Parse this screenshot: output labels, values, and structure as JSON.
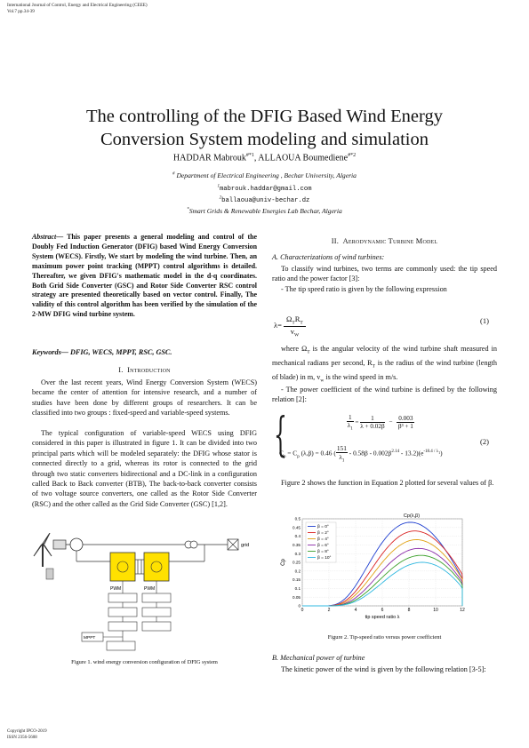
{
  "header": {
    "journal": "International Journal of Control, Energy and Electrical Engineering (CEEE)",
    "volume": "Vol.7 pp.34-39"
  },
  "title": {
    "line1": "The controlling of the DFIG Based Wind Energy",
    "line2": "Conversion System modeling and simulation"
  },
  "authors": {
    "a1": "HADDAR Mabrouk",
    "a1_sup": "#*1",
    "sep": ", ",
    "a2": "ALLAOUA Boumediene",
    "a2_sup": "#*2"
  },
  "affiliations": {
    "dept_mark": "#",
    "dept": "Department of Electrical Engineering , Bechar University, Algeria",
    "email1_mark": "1",
    "email1": "mabrouk.haddar@gmail.com",
    "email2_mark": "2",
    "email2": "ballaoua@univ-bechar.dz",
    "lab_mark": "*",
    "lab": "Smart Grids & Renewable Energies Lab Bechar, Algeria"
  },
  "abstract": {
    "label": "Abstract",
    "text": "— This paper presents a general modeling and control of the Doubly Fed Induction Generator (DFIG) based Wind Energy Conversion System (WECS). Firstly, We start by modeling the wind turbine. Then, an maximum power point tracking (MPPT) control algorithms is detailed. Thereafter, we given DFIG's mathematic model in the d-q coordinates. Both Grid Side Converter (GSC) and Rotor Side Converter RSC control strategy are presented theoretically based on vector control. Finally, The validity of this control algorithm has been verified by the simulation of the 2-MW DFIG wind turbine system."
  },
  "keywords": {
    "label": "Keywords",
    "text": "— DFIG, WECS, MPPT, RSC, GSC."
  },
  "sec1": {
    "num": "I.",
    "title": "Introduction",
    "p1": "Over the last recent years, Wind Energy Conversion System (WECS) became the center of attention for intensive research, and a number of studies have been done by different groups of researchers. It can be classified into two groups : fixed-speed and variable-speed systems.",
    "p2": "The typical configuration of variable-speed WECS using DFIG considered in this paper is illustrated in figure 1. It can be divided into two principal parts which will be modeled separately: the DFIG whose stator is connected directly to a grid, whereas its rotor is connected to the grid through two static converters bidirectional and a DC-link in a configuration called Back to Back converter (BTB), The back-to-back converter consists of two voltage source converters, one called as the Rotor Side Converter (RSC) and the other called as the Grid Side Converter (GSC) [1,2]."
  },
  "fig1": {
    "caption": "Figure 1.    wind energy conversion configuration of DFIG system",
    "labels": {
      "grid": "grid",
      "mppt": "MPPT",
      "pwm1": "PWM",
      "pwm2": "PWM"
    }
  },
  "sec2": {
    "num": "II.",
    "title": "Aerodynamic Turbine Model",
    "subA": "A.  Characterizations of wind turbines:",
    "p1": "To classify wind turbines, two terms are commonly used: the tip speed ratio and the power factor [3]:",
    "p2": "- The tip speed ratio is given by the following expression",
    "eq1": {
      "lhs": "λ=",
      "num": "Ω",
      "num_sub": "T",
      "num2": "R",
      "num2_sub": "T",
      "den": "v",
      "den_sub": "W",
      "number": "(1)"
    },
    "p3": "where Ω",
    "p3_sub": "T",
    "p3b": " is the angular velocity of the wind turbine shaft measured in mechanical radians per second, R",
    "p3_sub2": "T",
    "p3c": " is the radius of the wind turbine (length of blade) in m, v",
    "p3_sub3": "w",
    "p3d": " is the wind speed in m/s.",
    "p4": "- The power coefficient of the wind turbine is defined by the following relation [2]:",
    "eq2": {
      "l1_lhs": "1",
      "l1_den": "λ",
      "l1_den_sub": "1",
      "l1_mid": "=",
      "l1_f2_num": "1",
      "l1_f2_den": "λ + 0.02β",
      "l1_minus": "−",
      "l1_f3_num": "0.003",
      "l1_f3_den": "β³ + 1",
      "l2_lhs": "C",
      "l2_lhs_sub": "p",
      "l2_eq": " = C",
      "l2_eq_sub": "p",
      "l2_args": " (λ,β) = 0.46 (",
      "l2_f_num": "151",
      "l2_f_den": "λ",
      "l2_f_den_sub": "1",
      "l2_rest": " - 0.58β - 0.002β",
      "l2_pow": "2.14",
      "l2_rest2": " - 13.2)(e",
      "l2_exp": "-18.4 / λ",
      "l2_exp_sub": "1",
      "l2_close": ")",
      "number": "(2)"
    },
    "p5": "Figure 2 shows the function in Equation 2  plotted for several values of β."
  },
  "chart_data": {
    "type": "line",
    "title": "Cp(λ,β)",
    "xlabel": "tip speed ratio λ",
    "ylabel": "Cp",
    "xlim": [
      0,
      12
    ],
    "ylim": [
      0,
      0.5
    ],
    "xticks": [
      0,
      2,
      4,
      6,
      8,
      10,
      12
    ],
    "yticks": [
      0,
      0.05,
      0.1,
      0.15,
      0.2,
      0.25,
      0.3,
      0.35,
      0.4,
      0.45,
      0.5
    ],
    "grid": true,
    "legend_placement": "top-left",
    "series": [
      {
        "name": "β = 0°",
        "color": "#1f3fd0",
        "peak_lambda": 8.1,
        "peak_cp": 0.48
      },
      {
        "name": "β = 2°",
        "color": "#d92020",
        "peak_lambda": 8.4,
        "peak_cp": 0.43
      },
      {
        "name": "β = 4°",
        "color": "#e0a010",
        "peak_lambda": 8.6,
        "peak_cp": 0.38
      },
      {
        "name": "β = 6°",
        "color": "#8a2aa8",
        "peak_lambda": 8.7,
        "peak_cp": 0.33
      },
      {
        "name": "β = 8°",
        "color": "#3aa02a",
        "peak_lambda": 8.9,
        "peak_cp": 0.29
      },
      {
        "name": "β = 10°",
        "color": "#30b8e0",
        "peak_lambda": 9.0,
        "peak_cp": 0.25
      }
    ]
  },
  "fig2": {
    "caption": "Figure 2.   Tip-speed ratio versus power coefficient"
  },
  "subB": {
    "title": "B.  Mechanical power of turbine",
    "p1": "The kinetic power of the wind is given by the following relation [3-5]:"
  },
  "footer": {
    "copyright": "Copyright IPCO-2019",
    "issn": "ISSN 2356-5608"
  }
}
